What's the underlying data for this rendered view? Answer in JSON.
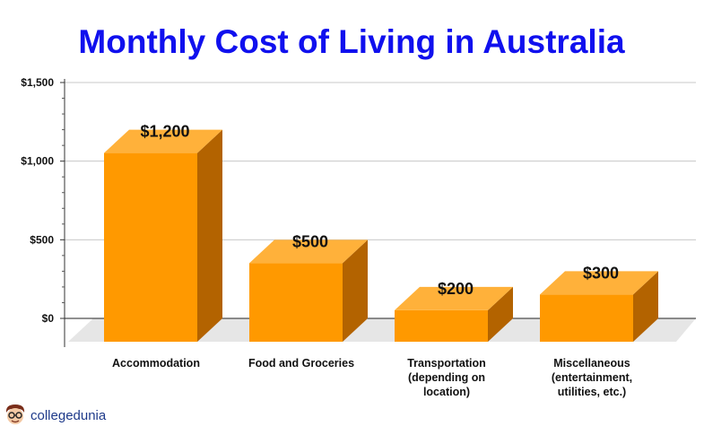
{
  "chart_data": {
    "type": "bar",
    "title": "Monthly Cost of Living in Australia",
    "categories": [
      [
        "Accommodation"
      ],
      [
        "Food and Groceries"
      ],
      [
        "Transportation",
        "(depending on",
        "location)"
      ],
      [
        "Miscellaneous",
        "(entertainment,",
        "utilities, etc.)"
      ]
    ],
    "values": [
      1200,
      500,
      200,
      300
    ],
    "value_labels": [
      "$1,200",
      "$500",
      "$200",
      "$300"
    ],
    "y_ticks": [
      0,
      500,
      1000,
      1500
    ],
    "y_tick_labels": [
      "$0",
      "$500",
      "$1,000",
      "$1,500"
    ],
    "ylim": [
      0,
      1500
    ],
    "grid": true,
    "colors": {
      "title": "#1010ee",
      "bar_front": "#ff9900",
      "bar_top": "#ffb13a",
      "bar_side": "#b36300",
      "floor": "#e6e6e6",
      "grid": "#c8c8c8"
    }
  },
  "watermark": {
    "text": "collegedunia"
  }
}
